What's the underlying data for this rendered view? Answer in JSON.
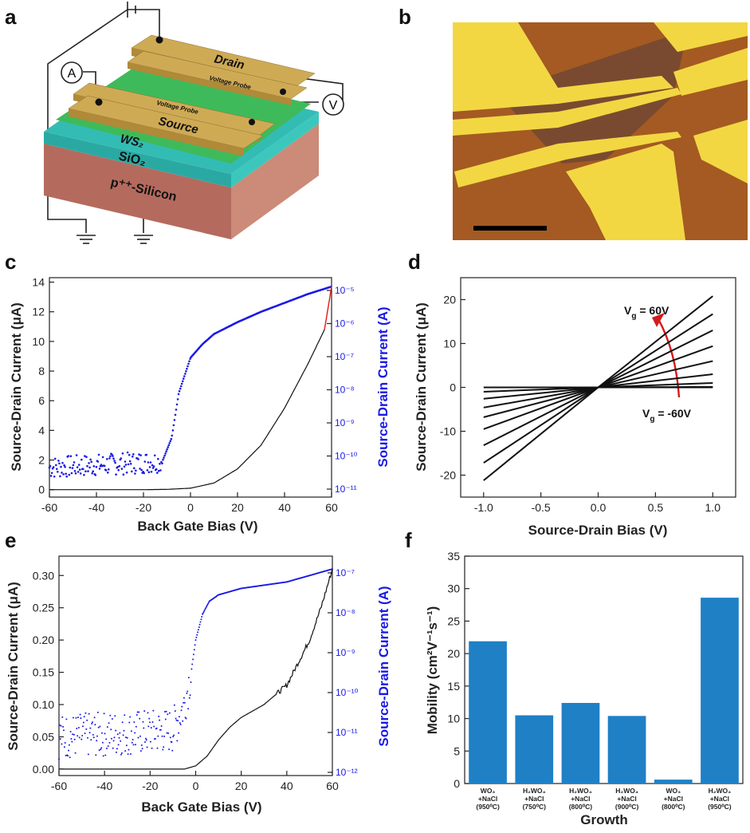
{
  "panels": {
    "a": {
      "letter": "a",
      "labels": {
        "drain": "Drain",
        "voltage_probe_top": "Voltage Probe",
        "voltage_probe_bottom": "Voltage Probe",
        "source": "Source",
        "ws2": "WS₂",
        "sio2": "SiO₂",
        "silicon": "p⁺⁺-Silicon",
        "ammeter": "A",
        "voltmeter": "V"
      },
      "colors": {
        "gold": "#c9a94a",
        "green": "#3dba5c",
        "teal": "#2fb6b0",
        "silicon": "#b86e63"
      }
    },
    "b": {
      "letter": "b",
      "colors": {
        "substrate": "#a65c24",
        "flake": "#7d4a2c",
        "gold": "#f2d743"
      }
    }
  },
  "chart_data": [
    {
      "panel": "c",
      "type": "line",
      "xlabel": "Back Gate Bias (V)",
      "ylabel": "Source-Drain Current (μA)",
      "y2label": "Source-Drain Current (A)",
      "xlim": [
        -60,
        60
      ],
      "ylim": [
        -0.5,
        14.3
      ],
      "xticks": [
        "-60",
        "-40",
        "-20",
        "0",
        "20",
        "40",
        "60"
      ],
      "yticks": [
        "0",
        "2",
        "4",
        "6",
        "8",
        "10",
        "12",
        "14"
      ],
      "y2ticks": [
        "10⁻¹¹",
        "10⁻¹⁰",
        "10⁻⁹",
        "10⁻⁸",
        "10⁻⁷",
        "10⁻⁶",
        "10⁻⁵"
      ],
      "series": [
        {
          "color": "#111111",
          "x": [
            -60,
            -20,
            -10,
            0,
            10,
            20,
            30,
            40,
            50,
            57,
            60
          ],
          "y": [
            0,
            0,
            0.02,
            0.1,
            0.45,
            1.4,
            3.0,
            5.5,
            8.5,
            10.8,
            13.7
          ]
        },
        {
          "color": "#1a1ae6",
          "x": [
            -60,
            -12,
            -8,
            -5,
            0,
            5,
            10,
            20,
            30,
            40,
            50,
            60
          ],
          "y": [
            1.5,
            1.9,
            3.5,
            6.5,
            8.9,
            9.8,
            10.5,
            11.3,
            12.0,
            12.6,
            13.2,
            13.7
          ]
        }
      ]
    },
    {
      "panel": "d",
      "type": "line",
      "xlabel": "Source-Drain Bias (V)",
      "ylabel": "Source-Drain Current (μA)",
      "xlim": [
        -1.2,
        1.2
      ],
      "ylim": [
        -25,
        25
      ],
      "xticks": [
        "-1.0",
        "-0.5",
        "0.0",
        "0.5",
        "1.0"
      ],
      "yticks": [
        "-20",
        "-10",
        "0",
        "10",
        "20"
      ],
      "annotations": {
        "top": "V",
        "top_sub": "g",
        "top_val": " = 60V",
        "bottom": "V",
        "bottom_sub": "g",
        "bottom_val": " = -60V"
      },
      "series": [
        {
          "slope": 20.8
        },
        {
          "slope": 16.7
        },
        {
          "slope": 13.0
        },
        {
          "slope": 9.4
        },
        {
          "slope": 6.0
        },
        {
          "slope": 3.0
        },
        {
          "slope": 1.0
        },
        {
          "slope": 0.1
        },
        {
          "slope": 0.0
        }
      ],
      "series_left": [
        {
          "slope": 21.2
        },
        {
          "slope": 17.2
        },
        {
          "slope": 13.2
        },
        {
          "slope": 9.5
        },
        {
          "slope": 6.8
        },
        {
          "slope": 4.6
        },
        {
          "slope": 2.6
        },
        {
          "slope": 1.0
        },
        {
          "slope": 0.0
        }
      ]
    },
    {
      "panel": "e",
      "type": "line",
      "xlabel": "Back Gate Bias (V)",
      "ylabel": "Source-Drain Current (μA)",
      "y2label": "Source-Drain Current (A)",
      "xlim": [
        -60,
        60
      ],
      "ylim": [
        -0.01,
        0.33
      ],
      "xticks": [
        "-60",
        "-40",
        "-20",
        "0",
        "20",
        "40",
        "60"
      ],
      "yticks": [
        "0.00",
        "0.05",
        "0.10",
        "0.15",
        "0.20",
        "0.25",
        "0.30"
      ],
      "y2ticks": [
        "10⁻¹²",
        "10⁻¹¹",
        "10⁻¹⁰",
        "10⁻⁹",
        "10⁻⁸",
        "10⁻⁷"
      ],
      "series": [
        {
          "color": "#111111",
          "x": [
            -60,
            -5,
            0,
            5,
            10,
            15,
            20,
            30,
            40,
            50,
            55,
            60
          ],
          "y": [
            0,
            0,
            0.005,
            0.02,
            0.045,
            0.065,
            0.08,
            0.1,
            0.13,
            0.2,
            0.25,
            0.31
          ]
        },
        {
          "color": "#1a1ae6",
          "x": [
            -60,
            -10,
            -5,
            -2,
            0,
            3,
            6,
            10,
            20,
            40,
            60
          ],
          "y": [
            0.05,
            0.06,
            0.1,
            0.15,
            0.2,
            0.24,
            0.26,
            0.27,
            0.28,
            0.29,
            0.31
          ]
        }
      ]
    },
    {
      "panel": "f",
      "type": "bar",
      "xlabel": "Growth",
      "ylabel": "Mobility (cm²V⁻¹s⁻¹)",
      "ylim": [
        0,
        35
      ],
      "yticks": [
        "0",
        "5",
        "10",
        "15",
        "20",
        "25",
        "30",
        "35"
      ],
      "color": "#1f80c6",
      "categories": [
        [
          "WO₃",
          "+NaCl",
          "(950⁰C)"
        ],
        [
          "H₂WO₄",
          "+NaCl",
          "(750⁰C)"
        ],
        [
          "H₂WO₄",
          "+NaCl",
          "(800⁰C)"
        ],
        [
          "H₂WO₄",
          "+NaCl",
          "(900⁰C)"
        ],
        [
          "WO₃",
          "+NaCl",
          "(800⁰C)"
        ],
        [
          "H₂WO₄",
          "+NaCl",
          "(950⁰C)"
        ]
      ],
      "values": [
        21.9,
        10.5,
        12.4,
        10.4,
        0.6,
        28.6
      ]
    }
  ]
}
